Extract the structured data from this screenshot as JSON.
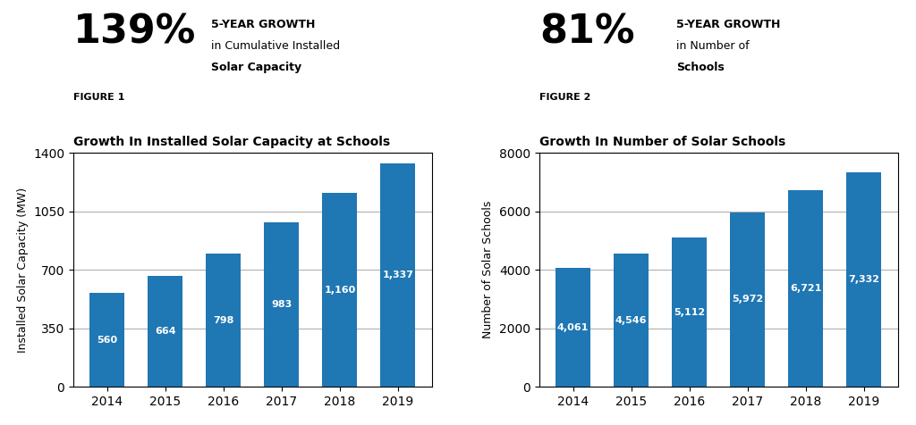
{
  "chart_data": [
    {
      "type": "bar",
      "subtitle": "FIGURE 1",
      "title": "Growth In Installed Solar Capacity at Schools",
      "annotations": [
        "139%",
        "5-YEAR GROWTH",
        "in Cumulative Installed",
        "Solar Capacity"
      ],
      "y_label": "Installed Solar Capacity (MW)",
      "categories": [
        "2014",
        "2015",
        "2016",
        "2017",
        "2018",
        "2019"
      ],
      "values": [
        560,
        664,
        798,
        983,
        1160,
        1337
      ],
      "value_labels": [
        "560",
        "664",
        "798",
        "983",
        "1,160",
        "1,337"
      ],
      "data_labels": true,
      "ylim": [
        0,
        1400
      ],
      "yticks": [
        0,
        350,
        700,
        1050,
        1400
      ],
      "grid": true
    },
    {
      "type": "bar",
      "subtitle": "FIGURE 2",
      "title": "Growth In Number of Solar Schools",
      "annotations": [
        "81%",
        "5-YEAR GROWTH",
        "in Number of",
        "Schools"
      ],
      "y_label": "Number of Solar Schools",
      "categories": [
        "2014",
        "2015",
        "2016",
        "2017",
        "2018",
        "2019"
      ],
      "values": [
        4061,
        4546,
        5112,
        5972,
        6721,
        7332
      ],
      "value_labels": [
        "4,061",
        "4,546",
        "5,112",
        "5,972",
        "6,721",
        "7,332"
      ],
      "data_labels": true,
      "ylim": [
        0,
        8000
      ],
      "yticks": [
        0,
        2000,
        4000,
        6000,
        8000
      ],
      "grid": true
    }
  ]
}
